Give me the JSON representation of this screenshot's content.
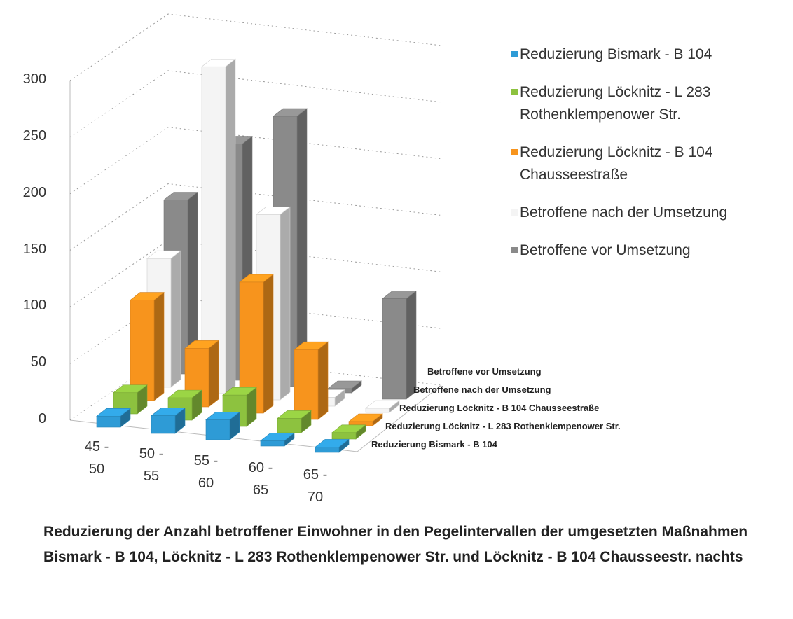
{
  "chart_data": {
    "type": "bar3d",
    "title": "Reduzierung der Anzahl betroffener  Einwohner in den Pegelintervallen der umgesetzten Maßnahmen Bismark - B 104, Löcknitz - L 283 Rothenklempenower Str. und Löcknitz - B 104 Chausseestr. nachts",
    "categories": [
      "45 - 50",
      "50 - 55",
      "55 - 60",
      "60 - 65",
      "65 - 70"
    ],
    "series": [
      {
        "name": "Reduzierung Bismark - B 104",
        "color": "#2e9bd6",
        "values": [
          6,
          12,
          14,
          1,
          1
        ]
      },
      {
        "name": "Reduzierung Löcknitz - L 283 Rothenklempenower Str.",
        "color": "#8dc23f",
        "values": [
          15,
          16,
          24,
          9,
          2
        ]
      },
      {
        "name": "Reduzierung Löcknitz - B 104 Chausseestraße",
        "color": "#f7941d",
        "values": [
          85,
          48,
          112,
          58,
          0
        ]
      },
      {
        "name": "Betroffene nach der Umsetzung",
        "color": "#f4f4f4",
        "values": [
          110,
          285,
          160,
          4,
          0
        ]
      },
      {
        "name": "Betroffene vor Umsetzung",
        "color": "#8a8a8a",
        "values": [
          150,
          205,
          235,
          0,
          85
        ]
      }
    ],
    "ylim": [
      0,
      300
    ],
    "yticks": [
      0,
      50,
      100,
      150,
      200,
      250,
      300
    ],
    "grid": true,
    "legend": "right"
  }
}
